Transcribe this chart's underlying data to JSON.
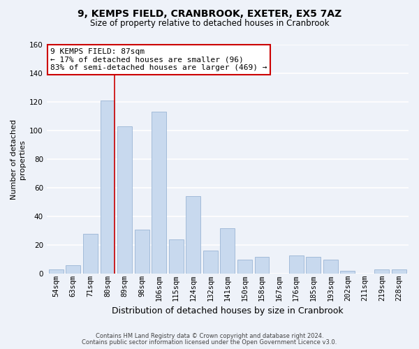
{
  "title": "9, KEMPS FIELD, CRANBROOK, EXETER, EX5 7AZ",
  "subtitle": "Size of property relative to detached houses in Cranbrook",
  "xlabel": "Distribution of detached houses by size in Cranbrook",
  "ylabel": "Number of detached\nproperties",
  "bar_labels": [
    "54sqm",
    "63sqm",
    "71sqm",
    "80sqm",
    "89sqm",
    "98sqm",
    "106sqm",
    "115sqm",
    "124sqm",
    "132sqm",
    "141sqm",
    "150sqm",
    "158sqm",
    "167sqm",
    "176sqm",
    "185sqm",
    "193sqm",
    "202sqm",
    "211sqm",
    "219sqm",
    "228sqm"
  ],
  "bar_values": [
    3,
    6,
    28,
    121,
    103,
    31,
    113,
    24,
    54,
    16,
    32,
    10,
    12,
    0,
    13,
    12,
    10,
    2,
    0,
    3,
    3
  ],
  "bar_color": "#c8d9ee",
  "bar_edge_color": "#9ab5d4",
  "highlight_bar_index": 3,
  "highlight_line_color": "#cc0000",
  "ylim": [
    0,
    160
  ],
  "yticks": [
    0,
    20,
    40,
    60,
    80,
    100,
    120,
    140,
    160
  ],
  "annotation_box_text": "9 KEMPS FIELD: 87sqm\n← 17% of detached houses are smaller (96)\n83% of semi-detached houses are larger (469) →",
  "annotation_box_color": "#ffffff",
  "annotation_box_edge_color": "#cc0000",
  "footer_line1": "Contains HM Land Registry data © Crown copyright and database right 2024.",
  "footer_line2": "Contains public sector information licensed under the Open Government Licence v3.0.",
  "background_color": "#eef2f9",
  "grid_color": "#ffffff",
  "title_fontsize": 10,
  "subtitle_fontsize": 8.5,
  "ylabel_fontsize": 8,
  "xlabel_fontsize": 9,
  "tick_fontsize": 7.5,
  "ann_fontsize": 8,
  "footer_fontsize": 6
}
